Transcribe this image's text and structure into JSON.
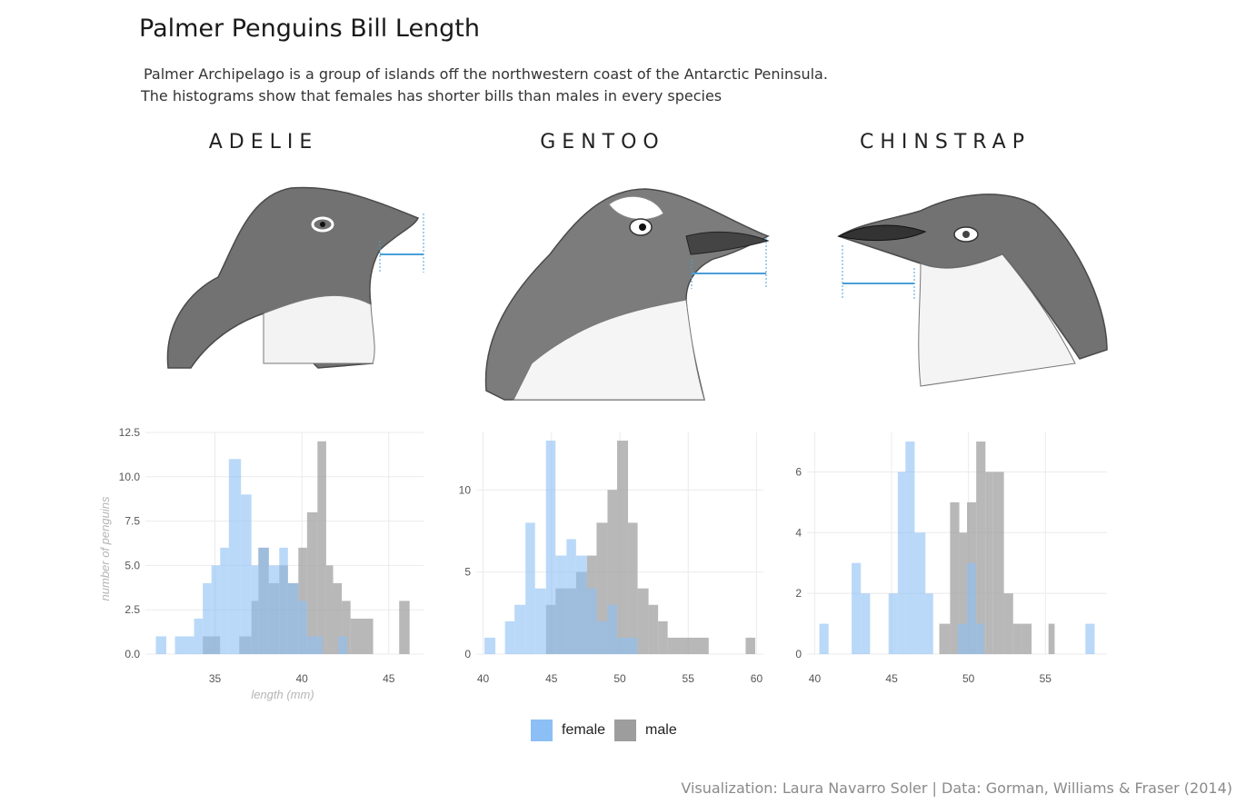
{
  "title": "Palmer Penguins Bill Length",
  "subtitle_line1": "Palmer Archipelago is a group of islands off the northwestern coast of the Antarctic Peninsula.",
  "subtitle_line2": "The histograms show that females has shorter bills than males in every species",
  "caption": "Visualization: Laura Navarro Soler | Data: Gorman, Williams & Fraser (2014)",
  "colors": {
    "female": "#8cbff5",
    "male": "#9d9d9d",
    "arrow": "#4a9fd8",
    "grid": "#ebebeb",
    "tick": "#555555"
  },
  "legend": {
    "female": "female",
    "male": "male"
  },
  "chart_data": [
    {
      "type": "bar",
      "species": "ADELIE",
      "xlabel": "length (mm)",
      "ylabel": "number of penguins",
      "xlim": [
        31,
        47
      ],
      "ylim": [
        0,
        12.5
      ],
      "x_ticks": [
        "35",
        "40",
        "45"
      ],
      "y_ticks": [
        "0.0",
        "2.5",
        "5.0",
        "7.5",
        "10.0",
        "12.5"
      ],
      "series": [
        {
          "name": "female",
          "bins": [
            [
              31.6,
              32.2,
              1
            ],
            [
              32.7,
              33.8,
              1
            ],
            [
              33.8,
              34.3,
              2
            ],
            [
              34.3,
              34.8,
              4
            ],
            [
              34.8,
              35.3,
              5
            ],
            [
              35.3,
              35.8,
              6
            ],
            [
              35.8,
              36.5,
              11
            ],
            [
              36.5,
              37.1,
              9
            ],
            [
              37.1,
              37.5,
              5
            ],
            [
              37.5,
              38.1,
              6
            ],
            [
              38.1,
              38.7,
              5
            ],
            [
              38.7,
              39.2,
              6
            ],
            [
              39.2,
              39.8,
              4
            ],
            [
              39.8,
              40.3,
              3
            ],
            [
              40.3,
              41.2,
              1
            ],
            [
              42.1,
              42.6,
              1
            ]
          ]
        },
        {
          "name": "male",
          "bins": [
            [
              34.3,
              35.3,
              1
            ],
            [
              36.4,
              37.1,
              1
            ],
            [
              37.1,
              37.5,
              3
            ],
            [
              37.5,
              38.1,
              6
            ],
            [
              38.1,
              38.7,
              4
            ],
            [
              38.7,
              39.2,
              5
            ],
            [
              39.2,
              39.8,
              4
            ],
            [
              39.8,
              40.3,
              6
            ],
            [
              40.3,
              40.9,
              8
            ],
            [
              40.9,
              41.4,
              12
            ],
            [
              41.4,
              41.8,
              5
            ],
            [
              41.8,
              42.3,
              4
            ],
            [
              42.3,
              42.8,
              3
            ],
            [
              42.8,
              44.1,
              2
            ],
            [
              45.6,
              46.2,
              3
            ]
          ]
        }
      ]
    },
    {
      "type": "bar",
      "species": "GENTOO",
      "xlim": [
        39.5,
        60.5
      ],
      "ylim": [
        0,
        13.5
      ],
      "x_ticks": [
        "40",
        "45",
        "50",
        "55",
        "60"
      ],
      "y_ticks": [
        "0",
        "5",
        "10"
      ],
      "series": [
        {
          "name": "female",
          "bins": [
            [
              40.1,
              40.9,
              1
            ],
            [
              41.6,
              42.3,
              2
            ],
            [
              42.3,
              43.1,
              3
            ],
            [
              43.1,
              43.8,
              8
            ],
            [
              43.8,
              44.6,
              4
            ],
            [
              44.6,
              45.3,
              13
            ],
            [
              45.3,
              46.1,
              6
            ],
            [
              46.1,
              46.8,
              7
            ],
            [
              46.8,
              47.6,
              6
            ],
            [
              47.6,
              48.3,
              4
            ],
            [
              48.3,
              49.1,
              2
            ],
            [
              49.1,
              49.8,
              3
            ],
            [
              49.8,
              50.6,
              1
            ],
            [
              50.6,
              51.3,
              1
            ]
          ]
        },
        {
          "name": "male",
          "bins": [
            [
              44.6,
              45.3,
              3
            ],
            [
              45.3,
              46.1,
              4
            ],
            [
              46.1,
              46.8,
              4
            ],
            [
              46.8,
              47.6,
              5
            ],
            [
              47.6,
              48.3,
              6
            ],
            [
              48.3,
              49.1,
              8
            ],
            [
              49.1,
              49.8,
              10
            ],
            [
              49.8,
              50.6,
              13
            ],
            [
              50.6,
              51.3,
              8
            ],
            [
              51.3,
              52.1,
              4
            ],
            [
              52.1,
              52.8,
              3
            ],
            [
              52.8,
              53.5,
              2
            ],
            [
              53.5,
              56.5,
              1
            ],
            [
              59.2,
              59.9,
              1
            ]
          ]
        }
      ]
    },
    {
      "type": "bar",
      "species": "CHINSTRAP",
      "xlim": [
        39.5,
        59
      ],
      "ylim": [
        0,
        7.3
      ],
      "x_ticks": [
        "40",
        "45",
        "50",
        "55"
      ],
      "y_ticks": [
        "0",
        "2",
        "4",
        "6"
      ],
      "series": [
        {
          "name": "female",
          "bins": [
            [
              40.3,
              40.9,
              1
            ],
            [
              42.4,
              43.0,
              3
            ],
            [
              43.0,
              43.6,
              2
            ],
            [
              44.8,
              45.4,
              2
            ],
            [
              45.4,
              45.9,
              6
            ],
            [
              45.9,
              46.5,
              7
            ],
            [
              46.5,
              47.2,
              4
            ],
            [
              47.2,
              47.7,
              2
            ],
            [
              49.3,
              49.9,
              1
            ],
            [
              49.9,
              50.5,
              3
            ],
            [
              50.5,
              51.0,
              1
            ],
            [
              57.6,
              58.2,
              1
            ]
          ]
        },
        {
          "name": "male",
          "bins": [
            [
              48.1,
              48.8,
              1
            ],
            [
              48.8,
              49.4,
              5
            ],
            [
              49.4,
              49.9,
              4
            ],
            [
              49.9,
              50.5,
              5
            ],
            [
              50.5,
              51.1,
              7
            ],
            [
              51.1,
              51.6,
              6
            ],
            [
              51.6,
              52.3,
              6
            ],
            [
              52.3,
              52.9,
              2
            ],
            [
              52.9,
              53.5,
              1
            ],
            [
              53.5,
              54.1,
              1
            ],
            [
              55.2,
              55.6,
              1
            ]
          ]
        }
      ]
    }
  ]
}
